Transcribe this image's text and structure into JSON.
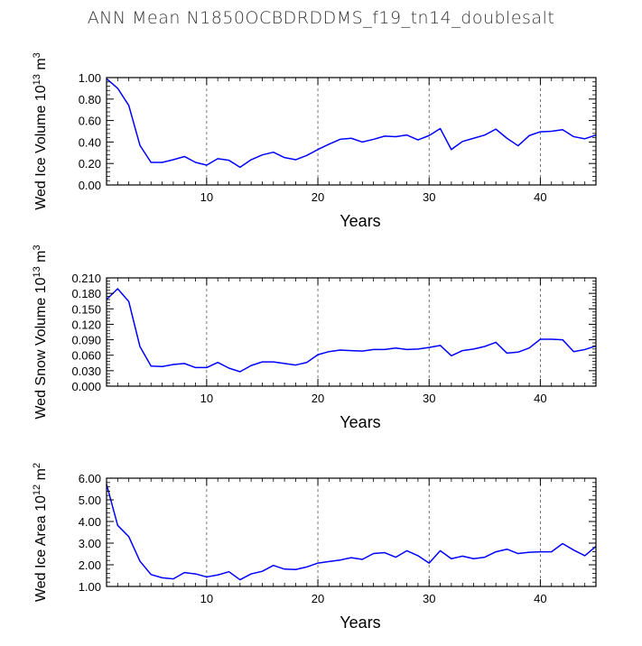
{
  "title": "ANN Mean N1850OCBDRDDMS_f19_tn14_doublesalt",
  "colors": {
    "series": "#0000ff",
    "axis": "#000000",
    "grid": "#555555"
  },
  "chart_data": [
    {
      "type": "line",
      "ylabel": "Wed Ice Volume 10¹³ m³",
      "ylabel_parts": {
        "base": "Wed Ice Volume 10",
        "sup1": "13",
        "unit": " m",
        "sup2": "3"
      },
      "xlabel": "Years",
      "xlim": [
        1,
        45
      ],
      "ylim": [
        0,
        1.0
      ],
      "xticks": [
        10,
        20,
        30,
        40
      ],
      "xtick_labels": [
        "10",
        "20",
        "30",
        "40"
      ],
      "yticks": [
        0,
        0.2,
        0.4,
        0.6,
        0.8,
        1.0
      ],
      "ytick_labels": [
        "0.00",
        "0.20",
        "0.40",
        "0.60",
        "0.80",
        "1.00"
      ],
      "grid": "vertical dashed at x ticks",
      "series": [
        {
          "x": [
            1,
            2,
            3,
            4,
            5,
            6,
            7,
            8,
            9,
            10,
            11,
            12,
            13,
            14,
            15,
            16,
            17,
            18,
            19,
            20,
            21,
            22,
            23,
            24,
            25,
            26,
            27,
            28,
            29,
            30,
            31,
            32,
            33,
            34,
            35,
            36,
            37,
            38,
            39,
            40,
            41,
            42,
            43,
            44,
            45
          ],
          "values": [
            0.99,
            0.9,
            0.74,
            0.37,
            0.21,
            0.21,
            0.235,
            0.265,
            0.21,
            0.185,
            0.245,
            0.23,
            0.165,
            0.235,
            0.28,
            0.305,
            0.255,
            0.235,
            0.275,
            0.33,
            0.38,
            0.425,
            0.435,
            0.4,
            0.425,
            0.455,
            0.45,
            0.465,
            0.42,
            0.46,
            0.525,
            0.33,
            0.405,
            0.435,
            0.465,
            0.52,
            0.435,
            0.365,
            0.46,
            0.495,
            0.5,
            0.515,
            0.45,
            0.43,
            0.465
          ]
        }
      ]
    },
    {
      "type": "line",
      "ylabel": "Wed Snow Volume 10¹³ m³",
      "ylabel_parts": {
        "base": "Wed Snow Volume 10",
        "sup1": "13",
        "unit": " m",
        "sup2": "3"
      },
      "xlabel": "Years",
      "xlim": [
        1,
        45
      ],
      "ylim": [
        0,
        0.21
      ],
      "xticks": [
        10,
        20,
        30,
        40
      ],
      "xtick_labels": [
        "10",
        "20",
        "30",
        "40"
      ],
      "yticks": [
        0,
        0.03,
        0.06,
        0.09,
        0.12,
        0.15,
        0.18,
        0.21
      ],
      "ytick_labels": [
        "0.000",
        "0.030",
        "0.060",
        "0.090",
        "0.120",
        "0.150",
        "0.180",
        "0.210"
      ],
      "grid": "vertical dashed at x ticks",
      "series": [
        {
          "x": [
            1,
            2,
            3,
            4,
            5,
            6,
            7,
            8,
            9,
            10,
            11,
            12,
            13,
            14,
            15,
            16,
            17,
            18,
            19,
            20,
            21,
            22,
            23,
            24,
            25,
            26,
            27,
            28,
            29,
            30,
            31,
            32,
            33,
            34,
            35,
            36,
            37,
            38,
            39,
            40,
            41,
            42,
            43,
            44,
            45
          ],
          "values": [
            0.168,
            0.189,
            0.164,
            0.077,
            0.039,
            0.038,
            0.042,
            0.044,
            0.036,
            0.036,
            0.046,
            0.035,
            0.028,
            0.04,
            0.047,
            0.047,
            0.044,
            0.041,
            0.046,
            0.061,
            0.067,
            0.07,
            0.069,
            0.068,
            0.071,
            0.071,
            0.074,
            0.071,
            0.072,
            0.075,
            0.079,
            0.059,
            0.069,
            0.072,
            0.077,
            0.085,
            0.064,
            0.066,
            0.074,
            0.091,
            0.091,
            0.09,
            0.067,
            0.071,
            0.078
          ]
        }
      ]
    },
    {
      "type": "line",
      "ylabel": "Wed Ice Area 10¹² m²",
      "ylabel_parts": {
        "base": "Wed Ice Area 10",
        "sup1": "12",
        "unit": " m",
        "sup2": "2"
      },
      "xlabel": "Years",
      "xlim": [
        1,
        45
      ],
      "ylim": [
        1.0,
        6.0
      ],
      "xticks": [
        10,
        20,
        30,
        40
      ],
      "xtick_labels": [
        "10",
        "20",
        "30",
        "40"
      ],
      "yticks": [
        1,
        2,
        3,
        4,
        5,
        6
      ],
      "ytick_labels": [
        "1.00",
        "2.00",
        "3.00",
        "4.00",
        "5.00",
        "6.00"
      ],
      "grid": "vertical dashed at x ticks",
      "series": [
        {
          "x": [
            1,
            2,
            3,
            4,
            5,
            6,
            7,
            8,
            9,
            10,
            11,
            12,
            13,
            14,
            15,
            16,
            17,
            18,
            19,
            20,
            21,
            22,
            23,
            24,
            25,
            26,
            27,
            28,
            29,
            30,
            31,
            32,
            33,
            34,
            35,
            36,
            37,
            38,
            39,
            40,
            41,
            42,
            43,
            44,
            45
          ],
          "values": [
            5.72,
            3.82,
            3.3,
            2.17,
            1.55,
            1.4,
            1.35,
            1.64,
            1.58,
            1.44,
            1.53,
            1.68,
            1.31,
            1.58,
            1.7,
            1.97,
            1.8,
            1.78,
            1.9,
            2.08,
            2.15,
            2.22,
            2.33,
            2.25,
            2.52,
            2.56,
            2.35,
            2.65,
            2.42,
            2.08,
            2.65,
            2.28,
            2.4,
            2.28,
            2.35,
            2.6,
            2.72,
            2.52,
            2.58,
            2.6,
            2.6,
            2.98,
            2.68,
            2.42,
            2.85
          ]
        }
      ]
    }
  ]
}
